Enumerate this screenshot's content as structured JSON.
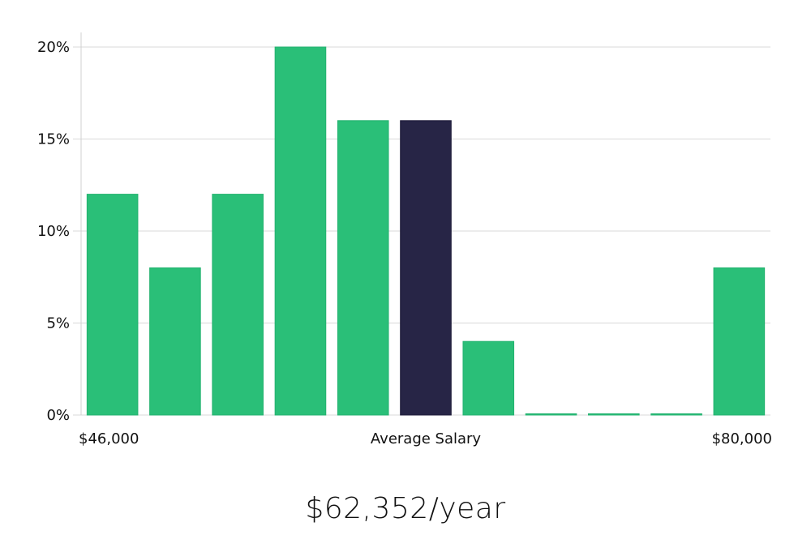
{
  "chart_data": {
    "type": "bar",
    "categories": [
      "$46,000",
      "",
      "",
      "",
      "",
      "Average Salary",
      "",
      "",
      "",
      "",
      "$80,000"
    ],
    "values": [
      12,
      8,
      12,
      20,
      16,
      16,
      4,
      0,
      0,
      0,
      8
    ],
    "highlight_index": 5,
    "ylim": [
      0,
      20
    ],
    "yticks": [
      0,
      5,
      10,
      15,
      20
    ],
    "ytick_labels": [
      "0%",
      "5%",
      "10%",
      "15%",
      "20%"
    ],
    "x_labels": {
      "left": "$46,000",
      "center": "Average Salary",
      "right": "$80,000"
    },
    "grid": true,
    "bar_color": "#2abf78",
    "highlight_color": "#272546"
  },
  "salary": {
    "value": "$62,352/year"
  }
}
